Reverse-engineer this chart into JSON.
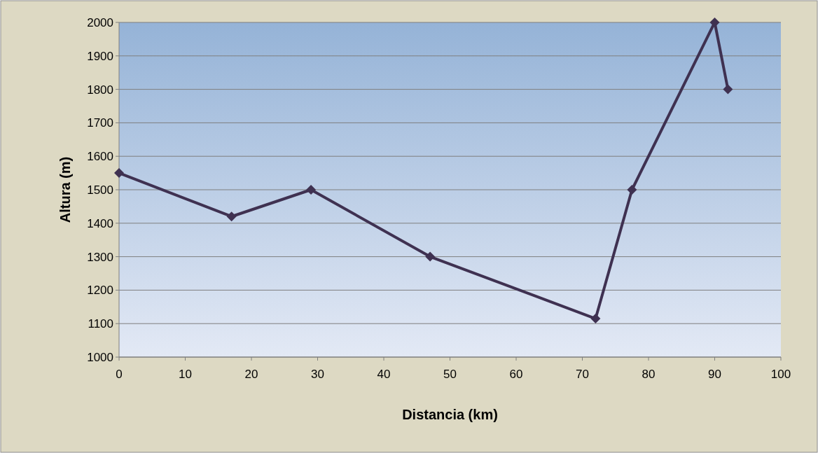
{
  "chart_data": {
    "type": "line",
    "xlabel": "Distancia (km)",
    "ylabel": "Altura (m)",
    "x": [
      0,
      17,
      29,
      47,
      72,
      77.5,
      90,
      92
    ],
    "series": [
      {
        "color": "#3f3151",
        "values": [
          1550,
          1420,
          1500,
          1300,
          1115,
          1500,
          2000,
          1800
        ]
      }
    ],
    "xlim": [
      0,
      100
    ],
    "xticks": [
      0,
      10,
      20,
      30,
      40,
      50,
      60,
      70,
      80,
      90,
      100
    ],
    "ylim": [
      1000,
      2000
    ],
    "yticks": [
      1000,
      1100,
      1200,
      1300,
      1400,
      1500,
      1600,
      1700,
      1800,
      1900,
      2000
    ],
    "grid": "y",
    "marker": "diamond",
    "line_style": "solid"
  }
}
